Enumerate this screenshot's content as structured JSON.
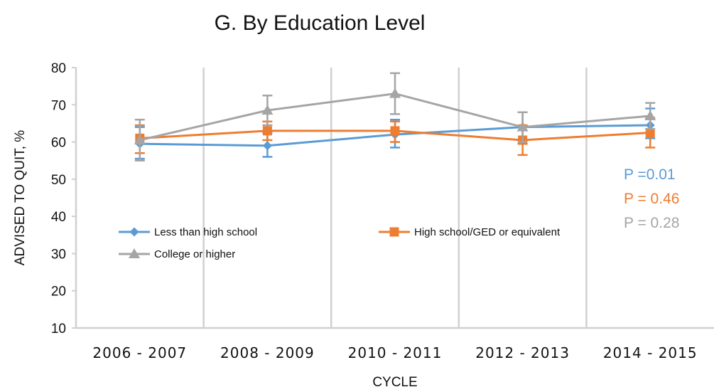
{
  "chart_data": {
    "type": "line",
    "title": "G. By Education Level",
    "xlabel": "CYCLE",
    "ylabel": "ADVISED TO QUIT, %",
    "ylim": [
      10,
      80
    ],
    "yticks": [
      "10",
      "20",
      "30",
      "40",
      "50",
      "60",
      "70",
      "80"
    ],
    "categories": [
      "2006 - 2007",
      "2008 - 2009",
      "2010 - 2011",
      "2012 - 2013",
      "2014 - 2015"
    ],
    "grid": "vertical",
    "legend_position": "center-left",
    "series": [
      {
        "name": "Less than high school",
        "color": "#5b9bd5",
        "marker": "diamond",
        "values": [
          59.5,
          59,
          62,
          64,
          64.5
        ],
        "err_low": [
          55.5,
          56,
          58.5,
          59.5,
          61
        ],
        "err_high": [
          64,
          62.5,
          66,
          68,
          69
        ]
      },
      {
        "name": "High school/GED or equivalent",
        "color": "#ed7d31",
        "marker": "square",
        "values": [
          61,
          63,
          63,
          60.5,
          62.5
        ],
        "err_low": [
          57,
          60.5,
          60,
          56.5,
          58.5
        ],
        "err_high": [
          64.5,
          65.5,
          65.5,
          64.5,
          66.5
        ]
      },
      {
        "name": "College or higher",
        "color": "#a5a5a5",
        "marker": "triangle",
        "values": [
          60.5,
          68.5,
          73,
          64,
          67
        ],
        "err_low": [
          55,
          64.5,
          67.5,
          60,
          63.5
        ],
        "err_high": [
          66,
          72.5,
          78.5,
          68,
          70.5
        ]
      }
    ],
    "annotations": [
      {
        "text": "P  =0.01",
        "color": "#5b9bd5"
      },
      {
        "text": "P = 0.46",
        "color": "#ed7d31"
      },
      {
        "text": "P = 0.28",
        "color": "#a5a5a5"
      }
    ]
  }
}
